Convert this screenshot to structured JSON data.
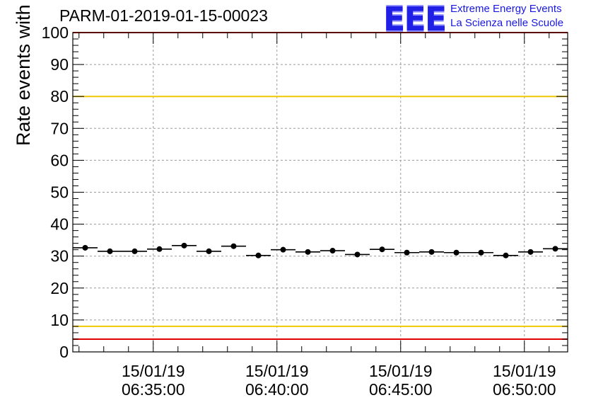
{
  "header": {
    "run_title": "PARM-01-2019-01-15-00023",
    "logo_text": "EEE",
    "org_line1": "Extreme Energy Events",
    "org_line2": "La Scienza nelle Scuole"
  },
  "colors": {
    "upper_threshold_yellow": "#f0c800",
    "limit_red": "#e00000",
    "logo_blue": "#1f1fe6",
    "points": "#000000"
  },
  "chart_data": {
    "type": "scatter",
    "ylabel": "Rate events with hits [Hz]",
    "xlabel": "",
    "ylim": [
      0,
      100
    ],
    "y_ticks": [
      0,
      10,
      20,
      30,
      40,
      50,
      60,
      70,
      80,
      90,
      100
    ],
    "xlim": [
      "06:31:45",
      "06:51:45"
    ],
    "x_ticks": [
      {
        "date": "15/01/19",
        "time": "06:35:00"
      },
      {
        "date": "15/01/19",
        "time": "06:40:00"
      },
      {
        "date": "15/01/19",
        "time": "06:45:00"
      },
      {
        "date": "15/01/19",
        "time": "06:50:00"
      }
    ],
    "grid": true,
    "reference_lines": [
      {
        "y": 100,
        "color": "red"
      },
      {
        "y": 80,
        "color": "yellow"
      },
      {
        "y": 8,
        "color": "yellow"
      },
      {
        "y": 4,
        "color": "red"
      }
    ],
    "points": [
      {
        "x": "06:32:15",
        "y": 32.6
      },
      {
        "x": "06:33:15",
        "y": 31.5
      },
      {
        "x": "06:34:15",
        "y": 31.5
      },
      {
        "x": "06:35:15",
        "y": 32.2
      },
      {
        "x": "06:36:15",
        "y": 33.3
      },
      {
        "x": "06:37:15",
        "y": 31.5
      },
      {
        "x": "06:38:15",
        "y": 33.1
      },
      {
        "x": "06:39:15",
        "y": 30.2
      },
      {
        "x": "06:40:15",
        "y": 32.0
      },
      {
        "x": "06:41:15",
        "y": 31.3
      },
      {
        "x": "06:42:15",
        "y": 31.7
      },
      {
        "x": "06:43:15",
        "y": 30.5
      },
      {
        "x": "06:44:15",
        "y": 32.1
      },
      {
        "x": "06:45:15",
        "y": 31.1
      },
      {
        "x": "06:46:15",
        "y": 31.3
      },
      {
        "x": "06:47:15",
        "y": 31.1
      },
      {
        "x": "06:48:15",
        "y": 31.1
      },
      {
        "x": "06:49:15",
        "y": 30.2
      },
      {
        "x": "06:50:15",
        "y": 31.3
      },
      {
        "x": "06:51:15",
        "y": 32.3
      }
    ]
  }
}
